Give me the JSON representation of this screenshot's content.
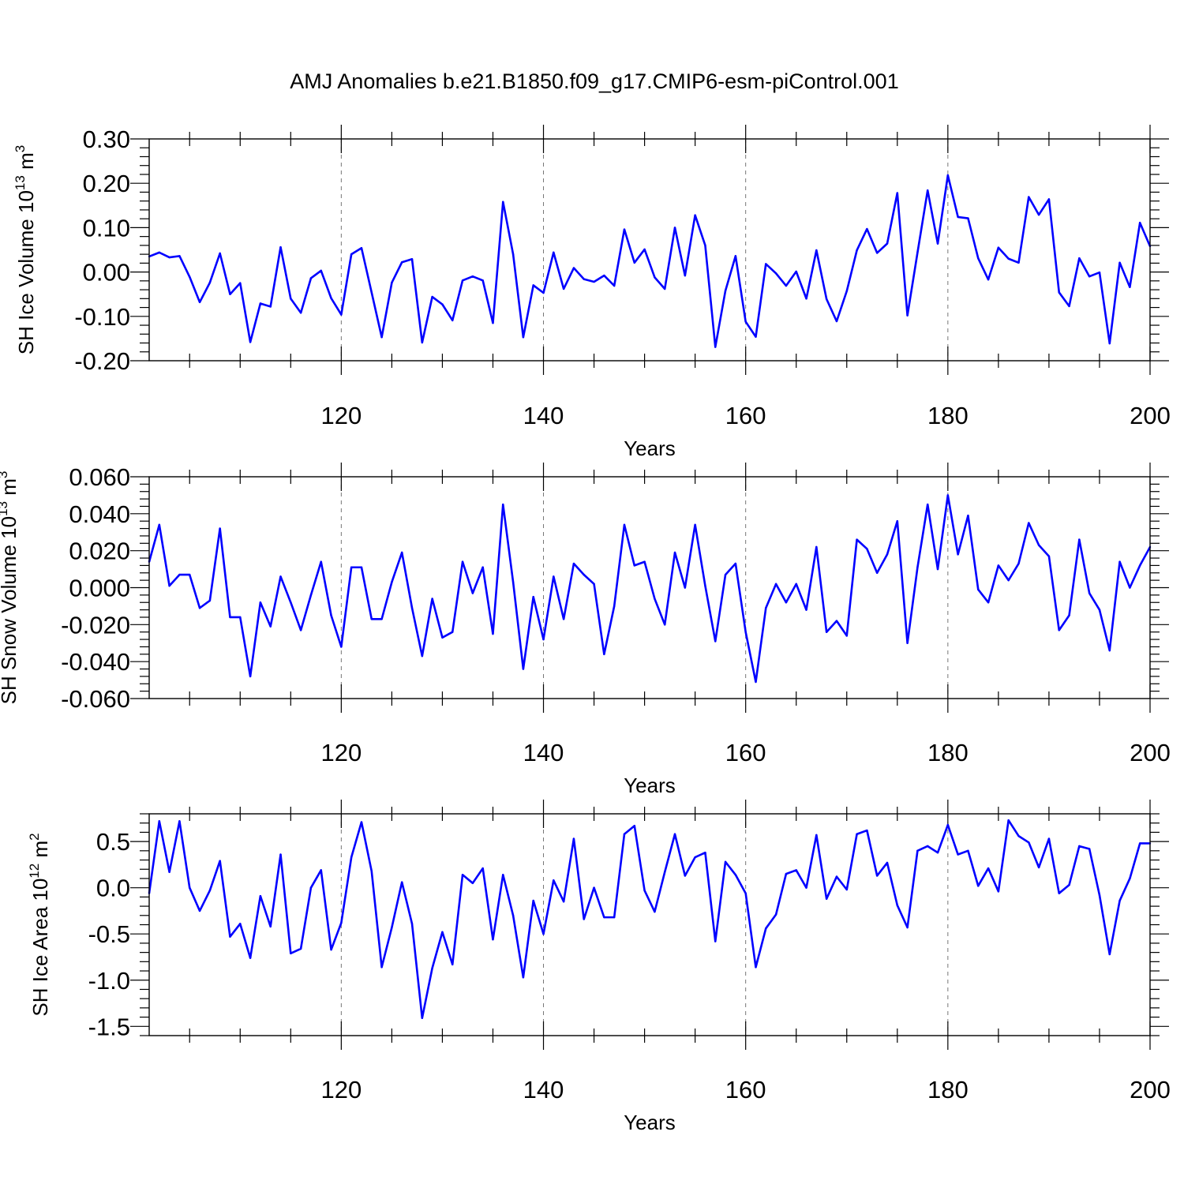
{
  "title": "AMJ Anomalies b.e21.B1850.f09_g17.CMIP6-esm-piControl.001",
  "line_color": "#0000ff",
  "chart_data": [
    {
      "type": "line",
      "ylabel": {
        "text": "SH Ice Volume 10",
        "sup1": "13",
        "unit": " m",
        "sup2": "3"
      },
      "xlabel": "Years",
      "xlim": [
        101,
        200
      ],
      "ylim": [
        -0.2,
        0.3
      ],
      "yticks": [
        -0.2,
        -0.1,
        0.0,
        0.1,
        0.2,
        0.3
      ],
      "ytick_labels": [
        "-0.20",
        "-0.10",
        "0.00",
        "0.10",
        "0.20",
        "0.30"
      ],
      "xticks": [
        120,
        140,
        160,
        180,
        200
      ],
      "xtick_labels": [
        "120",
        "140",
        "160",
        "180",
        "200"
      ],
      "gridlines_x": [
        120,
        140,
        160,
        180
      ],
      "x_start": 101,
      "values": [
        0.035,
        0.044,
        0.033,
        0.036,
        -0.011,
        -0.068,
        -0.024,
        0.042,
        -0.05,
        -0.025,
        -0.158,
        -0.071,
        -0.078,
        0.056,
        -0.06,
        -0.092,
        -0.014,
        0.003,
        -0.059,
        -0.096,
        0.04,
        0.054,
        -0.046,
        -0.147,
        -0.024,
        0.022,
        0.029,
        -0.159,
        -0.056,
        -0.073,
        -0.109,
        -0.019,
        -0.01,
        -0.019,
        -0.115,
        0.158,
        0.04,
        -0.147,
        -0.03,
        -0.047,
        0.044,
        -0.038,
        0.009,
        -0.016,
        -0.022,
        -0.008,
        -0.031,
        0.096,
        0.021,
        0.051,
        -0.012,
        -0.038,
        0.1,
        -0.008,
        0.128,
        0.06,
        -0.169,
        -0.042,
        0.036,
        -0.112,
        -0.146,
        0.018,
        -0.003,
        -0.031,
        0.001,
        -0.06,
        0.049,
        -0.061,
        -0.111,
        -0.043,
        0.049,
        0.097,
        0.043,
        0.064,
        0.178,
        -0.098,
        0.044,
        0.184,
        0.064,
        0.218,
        0.124,
        0.121,
        0.031,
        -0.017,
        0.055,
        0.03,
        0.021,
        0.169,
        0.129,
        0.164,
        -0.046,
        -0.077,
        0.031,
        -0.01,
        -0.001,
        -0.161,
        0.021,
        -0.034,
        0.111,
        0.058
      ]
    },
    {
      "type": "line",
      "ylabel": {
        "text": "SH Snow Volume 10",
        "sup1": "13",
        "unit": " m",
        "sup2": "3"
      },
      "xlabel": "Years",
      "xlim": [
        101,
        200
      ],
      "ylim": [
        -0.06,
        0.06
      ],
      "yticks": [
        -0.06,
        -0.04,
        -0.02,
        0.0,
        0.02,
        0.04,
        0.06
      ],
      "ytick_labels": [
        "-0.060",
        "-0.040",
        "-0.020",
        "0.000",
        "0.020",
        "0.040",
        "0.060"
      ],
      "xticks": [
        120,
        140,
        160,
        180,
        200
      ],
      "xtick_labels": [
        "120",
        "140",
        "160",
        "180",
        "200"
      ],
      "gridlines_x": [
        120,
        140,
        160,
        180
      ],
      "x_start": 101,
      "values": [
        0.014,
        0.034,
        0.001,
        0.007,
        0.007,
        -0.011,
        -0.007,
        0.032,
        -0.016,
        -0.016,
        -0.048,
        -0.008,
        -0.021,
        0.006,
        -0.008,
        -0.023,
        -0.004,
        0.014,
        -0.015,
        -0.032,
        0.011,
        0.011,
        -0.017,
        -0.017,
        0.003,
        0.019,
        -0.011,
        -0.037,
        -0.006,
        -0.027,
        -0.024,
        0.014,
        -0.003,
        0.011,
        -0.025,
        0.045,
        0.003,
        -0.044,
        -0.005,
        -0.028,
        0.006,
        -0.017,
        0.013,
        0.007,
        0.002,
        -0.036,
        -0.01,
        0.034,
        0.012,
        0.014,
        -0.006,
        -0.02,
        0.019,
        0.0,
        0.034,
        0.001,
        -0.029,
        0.007,
        0.013,
        -0.024,
        -0.051,
        -0.011,
        0.002,
        -0.008,
        0.002,
        -0.012,
        0.022,
        -0.024,
        -0.018,
        -0.026,
        0.026,
        0.021,
        0.008,
        0.018,
        0.036,
        -0.03,
        0.011,
        0.045,
        0.01,
        0.05,
        0.018,
        0.039,
        -0.001,
        -0.008,
        0.012,
        0.004,
        0.013,
        0.035,
        0.023,
        0.017,
        -0.023,
        -0.015,
        0.026,
        -0.003,
        -0.012,
        -0.034,
        0.014,
        0.0,
        0.012,
        0.022
      ]
    },
    {
      "type": "line",
      "ylabel": {
        "text": "SH Ice Area 10",
        "sup1": "12",
        "unit": " m",
        "sup2": "2"
      },
      "xlabel": "Years",
      "xlim": [
        101,
        200
      ],
      "ylim": [
        -1.6,
        0.8
      ],
      "yticks": [
        -1.5,
        -1.0,
        -0.5,
        0.0,
        0.5
      ],
      "ytick_labels": [
        "-1.5",
        "-1.0",
        "-0.5",
        "0.0",
        "0.5"
      ],
      "xticks": [
        120,
        140,
        160,
        180,
        200
      ],
      "xtick_labels": [
        "120",
        "140",
        "160",
        "180",
        "200"
      ],
      "gridlines_x": [
        120,
        140,
        160,
        180
      ],
      "x_start": 101,
      "values": [
        -0.06,
        0.72,
        0.17,
        0.72,
        0.0,
        -0.25,
        -0.03,
        0.29,
        -0.53,
        -0.39,
        -0.76,
        -0.09,
        -0.42,
        0.36,
        -0.71,
        -0.66,
        0.0,
        0.19,
        -0.67,
        -0.38,
        0.33,
        0.71,
        0.18,
        -0.86,
        -0.43,
        0.06,
        -0.39,
        -1.41,
        -0.87,
        -0.48,
        -0.83,
        0.14,
        0.05,
        0.21,
        -0.56,
        0.14,
        -0.3,
        -0.97,
        -0.14,
        -0.5,
        0.08,
        -0.15,
        0.53,
        -0.34,
        0.0,
        -0.32,
        -0.32,
        0.58,
        0.67,
        -0.03,
        -0.26,
        0.17,
        0.58,
        0.13,
        0.33,
        0.38,
        -0.58,
        0.28,
        0.14,
        -0.06,
        -0.86,
        -0.44,
        -0.29,
        0.15,
        0.19,
        0.0,
        0.57,
        -0.12,
        0.12,
        -0.02,
        0.58,
        0.62,
        0.13,
        0.27,
        -0.19,
        -0.43,
        0.4,
        0.45,
        0.38,
        0.68,
        0.36,
        0.4,
        0.02,
        0.21,
        -0.04,
        0.73,
        0.56,
        0.49,
        0.22,
        0.53,
        -0.06,
        0.03,
        0.45,
        0.42,
        -0.08,
        -0.72,
        -0.14,
        0.1,
        0.48,
        0.48
      ]
    }
  ]
}
